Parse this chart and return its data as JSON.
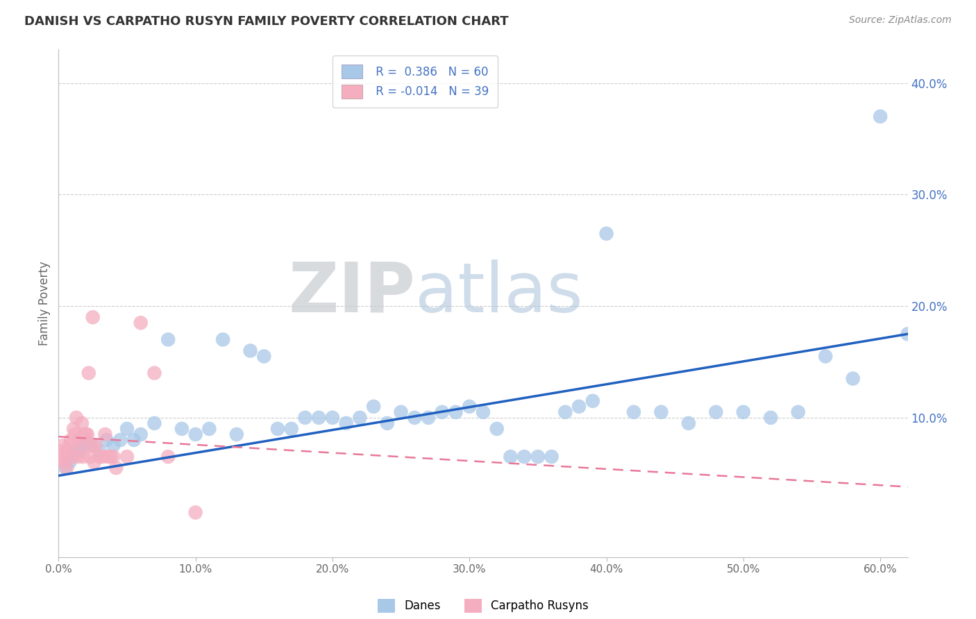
{
  "title": "DANISH VS CARPATHO RUSYN FAMILY POVERTY CORRELATION CHART",
  "source": "Source: ZipAtlas.com",
  "ylabel": "Family Poverty",
  "xlim": [
    0.0,
    0.62
  ],
  "ylim": [
    -0.025,
    0.43
  ],
  "xticks": [
    0.0,
    0.1,
    0.2,
    0.3,
    0.4,
    0.5,
    0.6
  ],
  "xticklabels": [
    "0.0%",
    "10.0%",
    "20.0%",
    "30.0%",
    "40.0%",
    "50.0%",
    "60.0%"
  ],
  "yticks_right": [
    0.1,
    0.2,
    0.3,
    0.4
  ],
  "yticklabels_right": [
    "10.0%",
    "20.0%",
    "30.0%",
    "40.0%"
  ],
  "grid_color": "#cccccc",
  "background_color": "#ffffff",
  "watermark_zip": "ZIP",
  "watermark_atlas": "atlas",
  "blue_color": "#a8c8e8",
  "pink_color": "#f4aec0",
  "blue_line_color": "#2060c0",
  "pink_line_color": "#e87898",
  "legend_label1": "Danes",
  "legend_label2": "Carpatho Rusyns",
  "danes_x": [
    0.005,
    0.008,
    0.01,
    0.012,
    0.015,
    0.018,
    0.02,
    0.025,
    0.03,
    0.035,
    0.04,
    0.045,
    0.05,
    0.055,
    0.06,
    0.07,
    0.08,
    0.09,
    0.1,
    0.11,
    0.12,
    0.13,
    0.14,
    0.15,
    0.16,
    0.17,
    0.18,
    0.19,
    0.2,
    0.21,
    0.22,
    0.23,
    0.24,
    0.25,
    0.26,
    0.27,
    0.28,
    0.29,
    0.3,
    0.31,
    0.32,
    0.33,
    0.34,
    0.35,
    0.36,
    0.37,
    0.38,
    0.39,
    0.4,
    0.42,
    0.44,
    0.46,
    0.48,
    0.5,
    0.52,
    0.54,
    0.56,
    0.58,
    0.6,
    0.62
  ],
  "danes_y": [
    0.055,
    0.06,
    0.065,
    0.07,
    0.07,
    0.075,
    0.08,
    0.075,
    0.07,
    0.08,
    0.075,
    0.08,
    0.09,
    0.08,
    0.085,
    0.095,
    0.17,
    0.09,
    0.085,
    0.09,
    0.17,
    0.085,
    0.16,
    0.155,
    0.09,
    0.09,
    0.1,
    0.1,
    0.1,
    0.095,
    0.1,
    0.11,
    0.095,
    0.105,
    0.1,
    0.1,
    0.105,
    0.105,
    0.11,
    0.105,
    0.09,
    0.065,
    0.065,
    0.065,
    0.065,
    0.105,
    0.11,
    0.115,
    0.265,
    0.105,
    0.105,
    0.095,
    0.105,
    0.105,
    0.1,
    0.105,
    0.155,
    0.135,
    0.37,
    0.175
  ],
  "rusyns_x": [
    0.001,
    0.002,
    0.003,
    0.004,
    0.005,
    0.006,
    0.007,
    0.008,
    0.009,
    0.01,
    0.011,
    0.012,
    0.013,
    0.014,
    0.015,
    0.016,
    0.017,
    0.018,
    0.019,
    0.02,
    0.021,
    0.022,
    0.023,
    0.024,
    0.025,
    0.026,
    0.027,
    0.03,
    0.032,
    0.034,
    0.036,
    0.038,
    0.04,
    0.042,
    0.05,
    0.06,
    0.07,
    0.08,
    0.1
  ],
  "rusyns_y": [
    0.065,
    0.07,
    0.075,
    0.06,
    0.065,
    0.055,
    0.07,
    0.075,
    0.08,
    0.065,
    0.09,
    0.085,
    0.1,
    0.065,
    0.08,
    0.075,
    0.095,
    0.065,
    0.085,
    0.085,
    0.085,
    0.14,
    0.065,
    0.075,
    0.19,
    0.06,
    0.075,
    0.065,
    0.065,
    0.085,
    0.065,
    0.065,
    0.065,
    0.055,
    0.065,
    0.185,
    0.14,
    0.065,
    0.015
  ],
  "danes_trend_x": [
    0.0,
    0.62
  ],
  "danes_trend_y": [
    0.048,
    0.175
  ],
  "rusyns_trend_x": [
    0.0,
    0.62
  ],
  "rusyns_trend_y": [
    0.083,
    0.038
  ]
}
